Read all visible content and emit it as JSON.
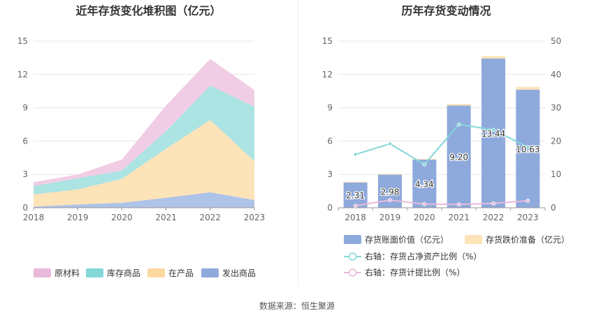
{
  "left_chart": {
    "title": "近年存货变化堆积图（亿元）",
    "legend": [
      {
        "name": "原材料",
        "color": "#e8b9da"
      },
      {
        "name": "库存商品",
        "color": "#84d7d7"
      },
      {
        "name": "在产品",
        "color": "#fcd8a1"
      },
      {
        "name": "发出商品",
        "color": "#8ea9dc"
      }
    ]
  },
  "right_chart": {
    "title": "历年存货变动情况",
    "legend": [
      {
        "name": "存货账面价值（亿元）",
        "color": "#8ea9dc"
      },
      {
        "name": "存货跌价准备（亿元）",
        "color": "#fde3b8"
      },
      {
        "name": "右轴：存货占净资产比例（%）",
        "color": "#84d7d7"
      },
      {
        "name": "右轴：存货计提比例（%）",
        "color": "#e8b9da"
      }
    ]
  },
  "source": "数据来源：恒生聚源",
  "chart_data": [
    {
      "type": "area",
      "stacked": true,
      "title": "近年存货变化堆积图（亿元）",
      "categories": [
        "2018",
        "2019",
        "2020",
        "2021",
        "2022",
        "2023"
      ],
      "ylim": [
        0,
        15
      ],
      "yticks": [
        0,
        3,
        6,
        9,
        12,
        15
      ],
      "grid": true,
      "legend_position": "bottom",
      "series": [
        {
          "name": "发出商品",
          "color": "#aec3e8",
          "values": [
            0.1,
            0.3,
            0.45,
            0.9,
            1.4,
            0.7
          ]
        },
        {
          "name": "在产品",
          "color": "#fde3b8",
          "values": [
            1.1,
            1.35,
            2.15,
            4.4,
            6.5,
            3.5
          ]
        },
        {
          "name": "库存商品",
          "color": "#ace3e3",
          "values": [
            0.75,
            1.0,
            0.75,
            1.6,
            3.1,
            4.9
          ]
        },
        {
          "name": "原材料",
          "color": "#f0cde5",
          "values": [
            0.35,
            0.35,
            1.0,
            2.3,
            2.4,
            1.5
          ]
        }
      ]
    },
    {
      "type": "bar",
      "stacked": true,
      "title": "历年存货变动情况",
      "categories": [
        "2018",
        "2019",
        "2020",
        "2021",
        "2022",
        "2023"
      ],
      "ylim": [
        0,
        15
      ],
      "yticks": [
        0,
        3,
        6,
        9,
        12,
        15
      ],
      "y2lim": [
        0,
        50
      ],
      "y2ticks": [
        0,
        10,
        20,
        30,
        40,
        50
      ],
      "grid": true,
      "legend_position": "bottom",
      "series": [
        {
          "name": "存货账面价值（亿元）",
          "color": "#8ea9dc",
          "values": [
            2.31,
            2.98,
            4.34,
            9.2,
            13.44,
            10.63
          ],
          "labels": [
            "2.31",
            "2.98",
            "4.34",
            "9.20",
            "13.44",
            "10.63"
          ]
        },
        {
          "name": "存货跌价准备（亿元）",
          "color": "#fde3b8",
          "values": [
            0.02,
            0.07,
            0.05,
            0.15,
            0.22,
            0.25
          ]
        }
      ],
      "lines": [
        {
          "name": "右轴：存货占净资产比例（%）",
          "axis": "right",
          "color": "#84d7d7",
          "values": [
            16.0,
            19.2,
            13.0,
            25.0,
            23.4,
            18.2
          ]
        },
        {
          "name": "右轴：存货计提比例（%）",
          "axis": "right",
          "color": "#e8b9da",
          "values": [
            0.6,
            2.3,
            1.1,
            1.0,
            1.3,
            2.1
          ]
        }
      ]
    }
  ]
}
